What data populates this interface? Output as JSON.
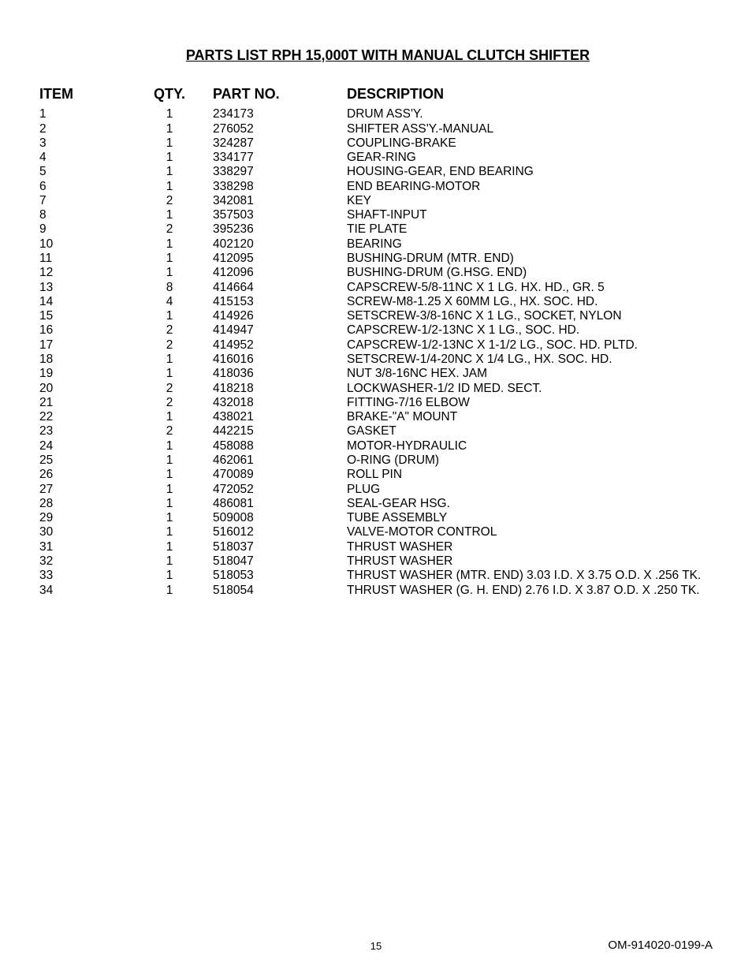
{
  "title": "PARTS LIST RPH 15,000T WITH MANUAL CLUTCH SHIFTER",
  "headers": {
    "item": "ITEM",
    "qty": "QTY.",
    "part": "PART NO.",
    "desc": "DESCRIPTION"
  },
  "rows": [
    {
      "item": "1",
      "qty": "1",
      "part": "234173",
      "desc": "DRUM ASS'Y."
    },
    {
      "item": "2",
      "qty": "1",
      "part": "276052",
      "desc": "SHIFTER ASS'Y.-MANUAL"
    },
    {
      "item": "3",
      "qty": "1",
      "part": "324287",
      "desc": "COUPLING-BRAKE"
    },
    {
      "item": "4",
      "qty": "1",
      "part": "334177",
      "desc": "GEAR-RING"
    },
    {
      "item": "5",
      "qty": "1",
      "part": "338297",
      "desc": "HOUSING-GEAR, END BEARING"
    },
    {
      "item": "6",
      "qty": "1",
      "part": "338298",
      "desc": "END BEARING-MOTOR"
    },
    {
      "item": "7",
      "qty": "2",
      "part": "342081",
      "desc": "KEY"
    },
    {
      "item": "8",
      "qty": "1",
      "part": "357503",
      "desc": "SHAFT-INPUT"
    },
    {
      "item": "9",
      "qty": "2",
      "part": "395236",
      "desc": "TIE PLATE"
    },
    {
      "item": "10",
      "qty": "1",
      "part": "402120",
      "desc": "BEARING"
    },
    {
      "item": "11",
      "qty": "1",
      "part": "412095",
      "desc": "BUSHING-DRUM (MTR. END)"
    },
    {
      "item": "12",
      "qty": "1",
      "part": "412096",
      "desc": "BUSHING-DRUM (G.HSG. END)"
    },
    {
      "item": "13",
      "qty": "8",
      "part": "414664",
      "desc": "CAPSCREW-5/8-11NC X 1 LG. HX. HD., GR. 5"
    },
    {
      "item": "14",
      "qty": "4",
      "part": "415153",
      "desc": "SCREW-M8-1.25 X 60MM LG., HX. SOC. HD."
    },
    {
      "item": "15",
      "qty": "1",
      "part": "414926",
      "desc": "SETSCREW-3/8-16NC X 1 LG., SOCKET, NYLON"
    },
    {
      "item": "16",
      "qty": "2",
      "part": "414947",
      "desc": "CAPSCREW-1/2-13NC X 1 LG., SOC. HD."
    },
    {
      "item": "17",
      "qty": "2",
      "part": "414952",
      "desc": "CAPSCREW-1/2-13NC X 1-1/2 LG., SOC. HD. PLTD."
    },
    {
      "item": "18",
      "qty": "1",
      "part": "416016",
      "desc": "SETSCREW-1/4-20NC X 1/4 LG., HX. SOC. HD."
    },
    {
      "item": "19",
      "qty": "1",
      "part": "418036",
      "desc": "NUT 3/8-16NC HEX. JAM"
    },
    {
      "item": "20",
      "qty": "2",
      "part": "418218",
      "desc": "LOCKWASHER-1/2 ID MED. SECT."
    },
    {
      "item": "21",
      "qty": "2",
      "part": "432018",
      "desc": "FITTING-7/16 ELBOW"
    },
    {
      "item": "22",
      "qty": "1",
      "part": "438021",
      "desc": "BRAKE-\"A\" MOUNT"
    },
    {
      "item": "23",
      "qty": "2",
      "part": "442215",
      "desc": "GASKET"
    },
    {
      "item": "24",
      "qty": "1",
      "part": "458088",
      "desc": "MOTOR-HYDRAULIC"
    },
    {
      "item": "25",
      "qty": "1",
      "part": "462061",
      "desc": "O-RING (DRUM)"
    },
    {
      "item": "26",
      "qty": "1",
      "part": "470089",
      "desc": "ROLL PIN"
    },
    {
      "item": "27",
      "qty": "1",
      "part": "472052",
      "desc": "PLUG"
    },
    {
      "item": "28",
      "qty": "1",
      "part": "486081",
      "desc": "SEAL-GEAR HSG."
    },
    {
      "item": "29",
      "qty": "1",
      "part": "509008",
      "desc": "TUBE ASSEMBLY"
    },
    {
      "item": "30",
      "qty": "1",
      "part": "516012",
      "desc": "VALVE-MOTOR CONTROL"
    },
    {
      "item": "31",
      "qty": "1",
      "part": "518037",
      "desc": "THRUST WASHER"
    },
    {
      "item": "32",
      "qty": "1",
      "part": "518047",
      "desc": "THRUST WASHER"
    },
    {
      "item": "33",
      "qty": "1",
      "part": "518053",
      "desc": "THRUST WASHER (MTR. END) 3.03 I.D. X 3.75 O.D.  X .256 TK."
    },
    {
      "item": "34",
      "qty": "1",
      "part": "518054",
      "desc": "THRUST WASHER (G. H. END) 2.76 I.D. X 3.87 O.D. X .250 TK."
    }
  ],
  "footer": {
    "page": "15",
    "doc": "OM-914020-0199-A"
  }
}
